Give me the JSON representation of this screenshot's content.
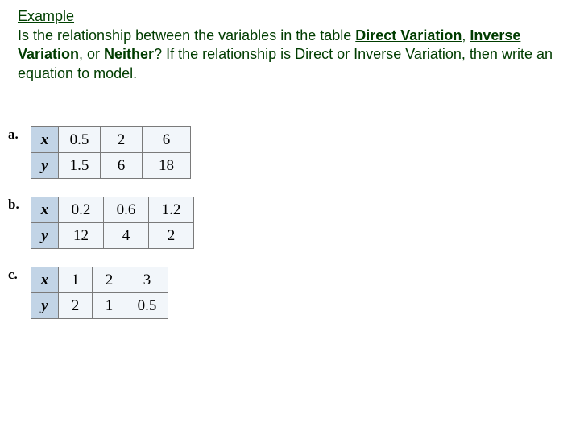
{
  "heading": "Example",
  "prompt_parts": {
    "p1": "Is the relationship between the variables in the table ",
    "dv": "Direct Variation",
    "comma1": ", ",
    "iv": "Inverse Variation",
    "comma2": ", or ",
    "nei": "Neither",
    "q": "?",
    "rest": "  If the relationship is Direct or Inverse Variation, then write an equation to model."
  },
  "tables": {
    "a": {
      "letter": "a.",
      "rows": [
        {
          "hdr": "x",
          "cells": [
            "0.5",
            "2",
            "6"
          ]
        },
        {
          "hdr": "y",
          "cells": [
            "1.5",
            "6",
            "18"
          ]
        }
      ]
    },
    "b": {
      "letter": "b.",
      "rows": [
        {
          "hdr": "x",
          "cells": [
            "0.2",
            "0.6",
            "1.2"
          ]
        },
        {
          "hdr": "y",
          "cells": [
            "12",
            "4",
            "2"
          ]
        }
      ]
    },
    "c": {
      "letter": "c.",
      "rows": [
        {
          "hdr": "x",
          "cells": [
            "1",
            "2",
            "3"
          ]
        },
        {
          "hdr": "y",
          "cells": [
            "2",
            "1",
            "0.5"
          ]
        }
      ]
    }
  },
  "colors": {
    "heading": "#004000",
    "prompt": "#003c00",
    "table_header_bg": "#c2d4e6",
    "table_cell_bg": "#f2f6fa",
    "table_border": "#7a7a7a"
  }
}
